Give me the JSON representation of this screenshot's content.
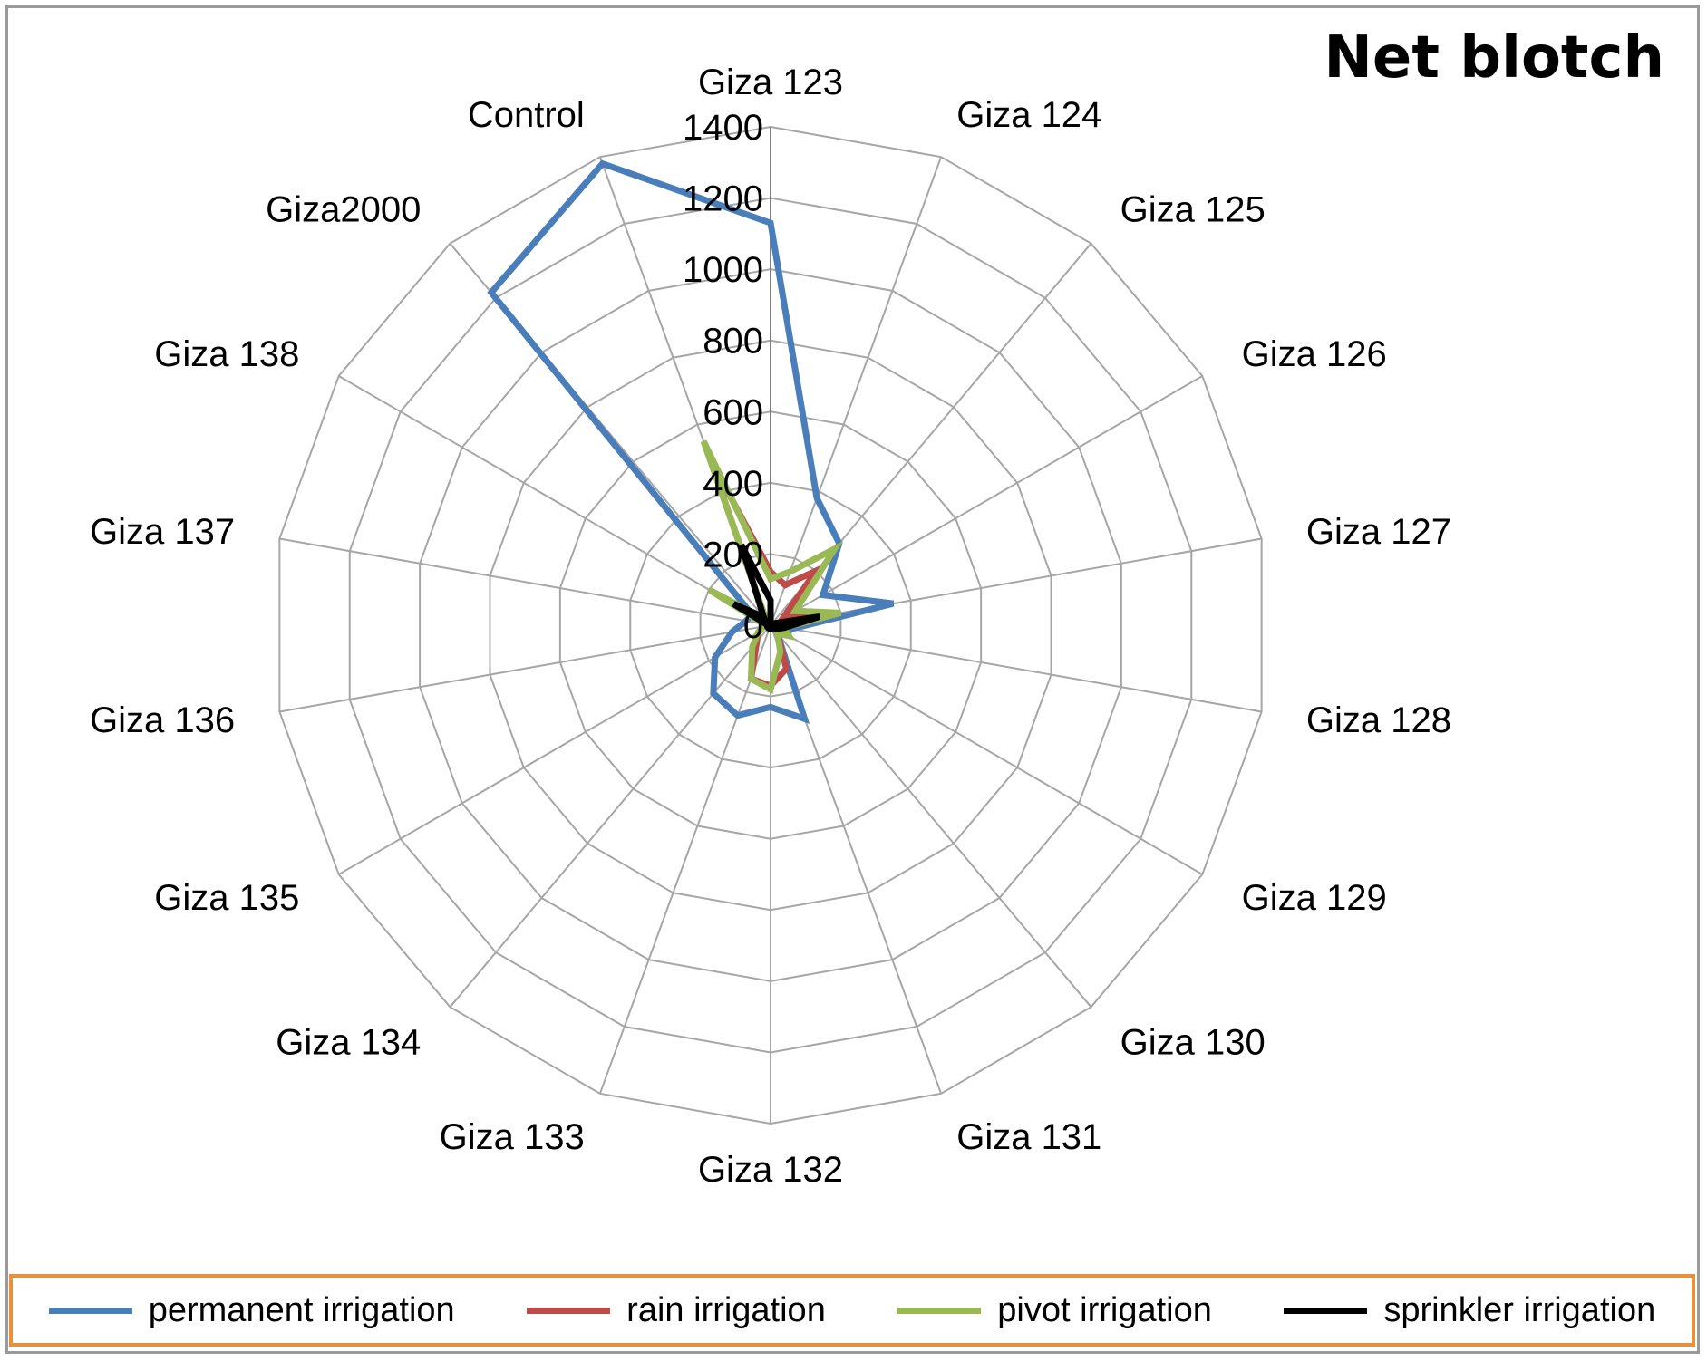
{
  "chart_data": {
    "type": "radar",
    "title": "Net blotch",
    "categories": [
      "Giza 123",
      "Giza 124",
      "Giza 125",
      "Giza 126",
      "Giza 127",
      "Giza 128",
      "Giza 129",
      "Giza 130",
      "Giza 131",
      "Giza 132",
      "Giza 133",
      "Giza 134",
      "Giza 135",
      "Giza 136",
      "Giza 137",
      "Giza 138",
      "Giza2000",
      "Control"
    ],
    "ticks": [
      "0",
      "200",
      "400",
      "600",
      "800",
      "1000",
      "1200",
      "1400"
    ],
    "rmax": 1400,
    "grid": true,
    "legend_position": "bottom",
    "series": [
      {
        "name": "permanent irrigation",
        "color": "#4a7ebb",
        "values": [
          1130,
          380,
          300,
          170,
          350,
          60,
          50,
          30,
          280,
          230,
          270,
          250,
          180,
          110,
          70,
          60,
          1220,
          1380
        ]
      },
      {
        "name": "rain irrigation",
        "color": "#be4b48",
        "values": [
          150,
          120,
          200,
          40,
          200,
          40,
          30,
          30,
          130,
          170,
          160,
          60,
          40,
          20,
          20,
          40,
          20,
          500
        ]
      },
      {
        "name": "pivot irrigation",
        "color": "#98b954",
        "values": [
          130,
          160,
          280,
          80,
          200,
          40,
          60,
          30,
          80,
          180,
          160,
          80,
          40,
          20,
          20,
          200,
          20,
          550
        ]
      },
      {
        "name": "sprinkler irrigation",
        "color": "#000000",
        "values": [
          70,
          0,
          0,
          10,
          140,
          40,
          20,
          10,
          10,
          10,
          10,
          10,
          10,
          10,
          10,
          120,
          30,
          240
        ]
      }
    ]
  }
}
